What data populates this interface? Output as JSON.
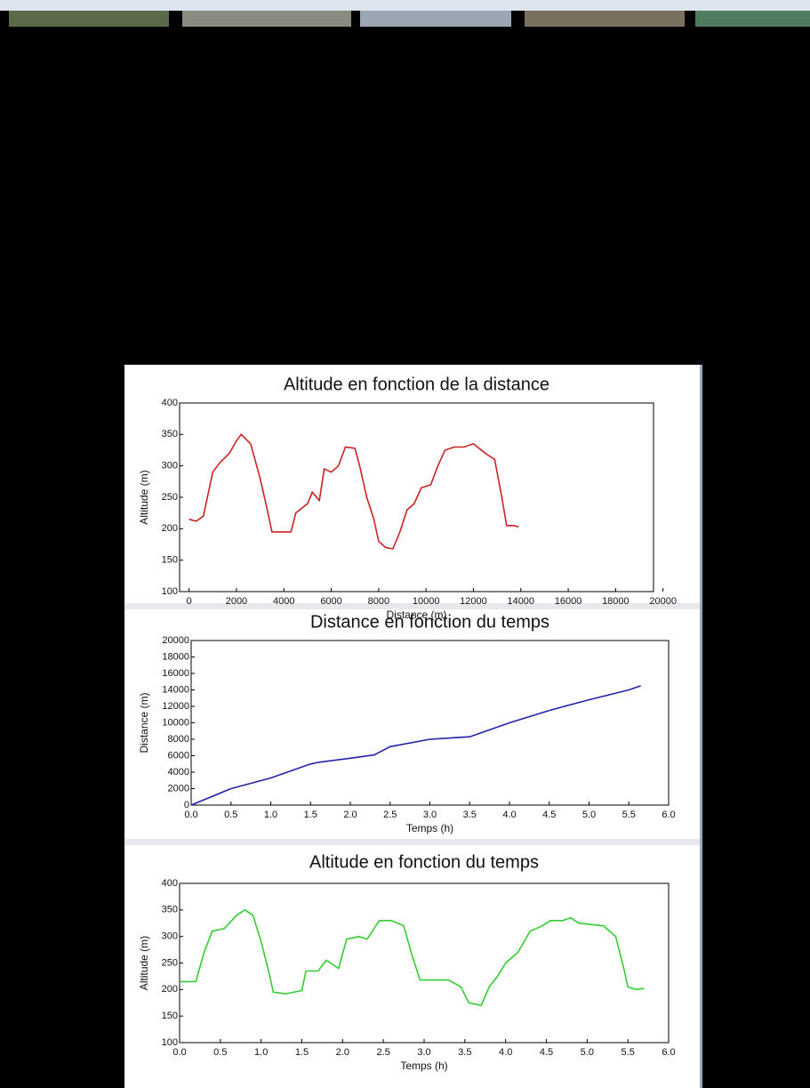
{
  "chart_data": [
    {
      "type": "line",
      "title": "Altitude en fonction de la distance",
      "xlabel": "Distance (m)",
      "ylabel": "Altitude (m)",
      "color": "#cc2222",
      "x": [
        0,
        300,
        600,
        1000,
        1300,
        1700,
        2000,
        2200,
        2600,
        3000,
        3300,
        3500,
        4000,
        4300,
        4500,
        5000,
        5200,
        5500,
        5700,
        6000,
        6300,
        6600,
        7000,
        7200,
        7500,
        7800,
        8000,
        8300,
        8600,
        8900,
        9200,
        9500,
        9800,
        10200,
        10500,
        10800,
        11200,
        11600,
        12000,
        12500,
        12900,
        13200,
        13400,
        13700,
        13900
      ],
      "values": [
        215,
        212,
        220,
        290,
        305,
        320,
        340,
        350,
        335,
        280,
        230,
        195,
        195,
        195,
        225,
        240,
        258,
        245,
        295,
        290,
        300,
        330,
        328,
        300,
        250,
        215,
        180,
        170,
        168,
        195,
        230,
        240,
        265,
        270,
        300,
        325,
        330,
        330,
        335,
        320,
        310,
        250,
        205,
        205,
        203
      ],
      "xlim": [
        -400,
        19600
      ],
      "ylim": [
        100,
        400
      ],
      "xticks": [
        0,
        2000,
        4000,
        6000,
        8000,
        10000,
        12000,
        14000,
        16000,
        18000,
        20000
      ],
      "yticks": [
        100,
        150,
        200,
        250,
        300,
        350,
        400
      ]
    },
    {
      "type": "line",
      "title": "Distance en fonction du temps",
      "xlabel": "Temps (h)",
      "ylabel": "Distance (m)",
      "color": "#2222aa",
      "x": [
        0,
        0.5,
        1.0,
        1.5,
        1.6,
        2.0,
        2.3,
        2.5,
        3.0,
        3.5,
        4.0,
        4.5,
        5.0,
        5.5,
        5.65
      ],
      "values": [
        0,
        2000,
        3300,
        5000,
        5200,
        5700,
        6100,
        7100,
        8000,
        8300,
        10000,
        11500,
        12800,
        14000,
        14500
      ],
      "xlim": [
        0,
        6
      ],
      "ylim": [
        0,
        20000
      ],
      "xticks": [
        {
          "value": 0,
          "label": "0.0"
        },
        0.5,
        {
          "value": 1,
          "label": "1.0"
        },
        1.5,
        {
          "value": 2,
          "label": "2.0"
        },
        2.5,
        {
          "value": 3,
          "label": "3.0"
        },
        3.5,
        {
          "value": 4,
          "label": "4.0"
        },
        4.5,
        {
          "value": 5,
          "label": "5.0"
        },
        5.5,
        {
          "value": 6,
          "label": "6.0"
        }
      ],
      "yticks": [
        0,
        2000,
        4000,
        6000,
        8000,
        10000,
        12000,
        14000,
        16000,
        18000,
        20000
      ]
    },
    {
      "type": "line",
      "title": "Altitude en fonction du temps",
      "xlabel": "Temps (h)",
      "ylabel": "Altitude (m)",
      "color": "#33cc33",
      "x": [
        0,
        0.2,
        0.3,
        0.4,
        0.55,
        0.7,
        0.8,
        0.9,
        1.0,
        1.1,
        1.15,
        1.3,
        1.5,
        1.55,
        1.7,
        1.8,
        1.95,
        2.05,
        2.2,
        2.3,
        2.45,
        2.6,
        2.75,
        2.85,
        2.95,
        3.3,
        3.45,
        3.55,
        3.7,
        3.8,
        3.9,
        4.0,
        4.15,
        4.3,
        4.45,
        4.55,
        4.7,
        4.8,
        4.9,
        5.2,
        5.35,
        5.45,
        5.5,
        5.6,
        5.7
      ],
      "values": [
        215,
        215,
        270,
        310,
        315,
        340,
        350,
        340,
        290,
        230,
        195,
        192,
        198,
        235,
        235,
        255,
        240,
        295,
        300,
        295,
        330,
        330,
        320,
        265,
        218,
        218,
        205,
        175,
        170,
        205,
        225,
        250,
        270,
        310,
        320,
        330,
        330,
        335,
        325,
        320,
        300,
        240,
        205,
        200,
        202
      ],
      "xlim": [
        0,
        6
      ],
      "ylim": [
        100,
        400
      ],
      "xticks": [
        {
          "value": 0,
          "label": "0.0"
        },
        0.5,
        {
          "value": 1,
          "label": "1.0"
        },
        1.5,
        {
          "value": 2,
          "label": "2.0"
        },
        2.5,
        {
          "value": 3,
          "label": "3.0"
        },
        3.5,
        {
          "value": 4,
          "label": "4.0"
        },
        4.5,
        {
          "value": 5,
          "label": "5.0"
        },
        5.5,
        {
          "value": 6,
          "label": "6.0"
        }
      ],
      "yticks": [
        100,
        150,
        200,
        250,
        300,
        350,
        400
      ]
    }
  ]
}
